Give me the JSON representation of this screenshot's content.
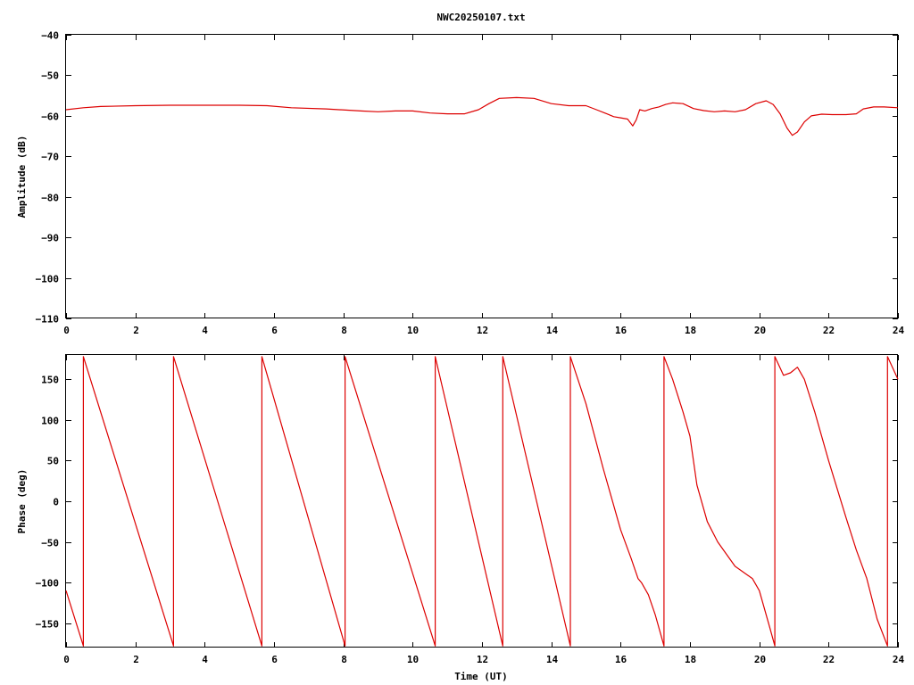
{
  "title": "NWC20250107.txt",
  "colors": {
    "trace": "#dd0000",
    "axis": "#000000",
    "background": "#ffffff"
  },
  "chart_data": [
    {
      "type": "line",
      "title": "NWC20250107.txt",
      "xlabel": "",
      "ylabel": "Amplitude (dB)",
      "xlim": [
        0,
        24
      ],
      "ylim": [
        -110,
        -40
      ],
      "xticks": [
        0,
        2,
        4,
        6,
        8,
        10,
        12,
        14,
        16,
        18,
        20,
        22,
        24
      ],
      "yticks": [
        -110,
        -100,
        -90,
        -80,
        -70,
        -60,
        -50,
        -40
      ],
      "xtick_labels": [
        "0",
        "2",
        "4",
        "6",
        "8",
        "10",
        "12",
        "14",
        "16",
        "18",
        "20",
        "22",
        "24"
      ],
      "ytick_labels": [
        "−110",
        "−100",
        "−90",
        "−80",
        "−70",
        "−60",
        "−50",
        "−40"
      ],
      "grid": false,
      "series": [
        {
          "x": [
            0,
            0.5,
            1,
            2,
            3,
            4,
            5,
            5.8,
            6.5,
            7.5,
            8.5,
            9,
            9.5,
            10,
            10.5,
            11,
            11.5,
            11.9,
            12.2,
            12.5,
            13,
            13.5,
            14,
            14.5,
            15,
            15.3,
            15.6,
            15.8,
            16.0,
            16.2,
            16.35,
            16.45,
            16.55,
            16.7,
            16.9,
            17.1,
            17.3,
            17.5,
            17.8,
            18.1,
            18.4,
            18.7,
            19,
            19.3,
            19.6,
            19.9,
            20.2,
            20.4,
            20.6,
            20.8,
            20.95,
            21.1,
            21.3,
            21.5,
            21.8,
            22.1,
            22.5,
            22.8,
            23.0,
            23.3,
            23.6,
            24
          ],
          "y": [
            -58.5,
            -58,
            -57.7,
            -57.5,
            -57.4,
            -57.4,
            -57.4,
            -57.5,
            -58,
            -58.3,
            -58.8,
            -59,
            -58.8,
            -58.8,
            -59.3,
            -59.5,
            -59.5,
            -58.5,
            -57,
            -55.7,
            -55.5,
            -55.7,
            -57,
            -57.5,
            -57.5,
            -58.5,
            -59.5,
            -60.2,
            -60.5,
            -60.8,
            -62.5,
            -61,
            -58.5,
            -58.8,
            -58.2,
            -57.8,
            -57.2,
            -56.8,
            -57,
            -58.2,
            -58.7,
            -59,
            -58.8,
            -59,
            -58.5,
            -57,
            -56.3,
            -57.2,
            -59.5,
            -63,
            -64.8,
            -64,
            -61.5,
            -60,
            -59.6,
            -59.7,
            -59.7,
            -59.5,
            -58.3,
            -57.8,
            -57.8,
            -58
          ]
        }
      ]
    },
    {
      "type": "line",
      "title": "",
      "xlabel": "Time (UT)",
      "ylabel": "Phase (deg)",
      "xlim": [
        0,
        24
      ],
      "ylim": [
        -180,
        180
      ],
      "xticks": [
        0,
        2,
        4,
        6,
        8,
        10,
        12,
        14,
        16,
        18,
        20,
        22,
        24
      ],
      "yticks": [
        -150,
        -100,
        -50,
        0,
        50,
        100,
        150
      ],
      "xtick_labels": [
        "0",
        "2",
        "4",
        "6",
        "8",
        "10",
        "12",
        "14",
        "16",
        "18",
        "20",
        "22",
        "24"
      ],
      "ytick_labels": [
        "−150",
        "−100",
        "−50",
        "0",
        "50",
        "100",
        "150"
      ],
      "grid": false,
      "series": [
        {
          "x": [
            0,
            0.5,
            0.5,
            3.1,
            3.1,
            5.65,
            5.65,
            8.05,
            8.05,
            10.65,
            10.65,
            12.6,
            12.6,
            14.55,
            14.55,
            15.0,
            15.5,
            16.0,
            16.3,
            16.5,
            16.6,
            16.8,
            17.0,
            17.25,
            17.25,
            17.5,
            17.8,
            18.0,
            18.2,
            18.5,
            18.8,
            19.3,
            19.8,
            20.0,
            20.3,
            20.45,
            20.45,
            20.7,
            20.9,
            21.1,
            21.3,
            21.6,
            22.0,
            22.5,
            22.8,
            23.1,
            23.4,
            23.7,
            23.7,
            24
          ],
          "y": [
            -110,
            -178,
            178,
            -178,
            178,
            -178,
            178,
            -178,
            178,
            -178,
            178,
            -178,
            178,
            -178,
            178,
            120,
            40,
            -35,
            -70,
            -95,
            -100,
            -115,
            -140,
            -178,
            178,
            150,
            110,
            80,
            20,
            -25,
            -50,
            -80,
            -95,
            -110,
            -155,
            -178,
            178,
            155,
            158,
            165,
            150,
            110,
            50,
            -20,
            -60,
            -95,
            -145,
            -178,
            178,
            150
          ]
        }
      ]
    }
  ]
}
